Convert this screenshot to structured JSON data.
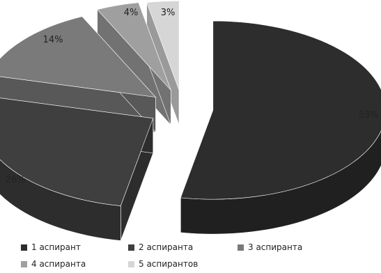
{
  "chart_data": {
    "type": "pie",
    "style": "3d-exploded",
    "slices": [
      {
        "label": "1 аспирант",
        "value": 53,
        "data_label": "53%",
        "color": "#2d2d2d"
      },
      {
        "label": "2 аспиранта",
        "value": 26,
        "data_label": "26%",
        "color": "#3f3f3f"
      },
      {
        "label": "3 аспиранта",
        "value": 14,
        "data_label": "14%",
        "color": "#7a7a7a"
      },
      {
        "label": "4 аспиранта",
        "value": 4,
        "data_label": "4%",
        "color": "#9f9f9f"
      },
      {
        "label": "5 аспирантов",
        "value": 3,
        "data_label": "3%",
        "color": "#d6d6d6"
      }
    ],
    "legend_position": "bottom"
  }
}
